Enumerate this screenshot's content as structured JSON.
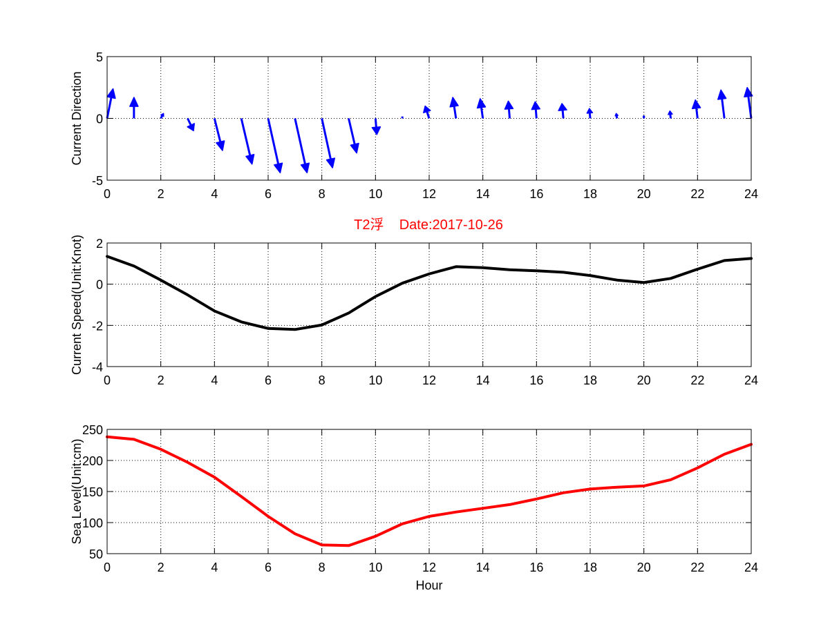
{
  "figure": {
    "title": "T2浮    Date:2017-10-26",
    "title_color": "#ff0000",
    "background": "#ffffff"
  },
  "chart_data": [
    {
      "type": "quiver",
      "ylabel": "Current Direction",
      "xlabel": "",
      "xlim": [
        0,
        24
      ],
      "ylim": [
        -5,
        5
      ],
      "xticks": [
        0,
        2,
        4,
        6,
        8,
        10,
        12,
        14,
        16,
        18,
        20,
        22,
        24
      ],
      "yticks": [
        -5,
        0,
        5
      ],
      "grid": true,
      "color": "#0000ff",
      "vectors": [
        {
          "x": 0,
          "u": 0.22,
          "v": 2.4
        },
        {
          "x": 1,
          "u": 0.0,
          "v": 1.7
        },
        {
          "x": 2,
          "u": 0.1,
          "v": 0.4
        },
        {
          "x": 3,
          "u": 0.22,
          "v": -1.0
        },
        {
          "x": 4,
          "u": 0.3,
          "v": -2.6
        },
        {
          "x": 5,
          "u": 0.4,
          "v": -3.7
        },
        {
          "x": 6,
          "u": 0.45,
          "v": -4.4
        },
        {
          "x": 7,
          "u": 0.45,
          "v": -4.4
        },
        {
          "x": 8,
          "u": 0.4,
          "v": -4.0
        },
        {
          "x": 9,
          "u": 0.3,
          "v": -2.8
        },
        {
          "x": 10,
          "u": 0.05,
          "v": -1.3
        },
        {
          "x": 11,
          "u": 0.0,
          "v": 0.08
        },
        {
          "x": 12,
          "u": -0.15,
          "v": 1.0
        },
        {
          "x": 13,
          "u": -0.12,
          "v": 1.7
        },
        {
          "x": 14,
          "u": -0.1,
          "v": 1.6
        },
        {
          "x": 15,
          "u": -0.05,
          "v": 1.4
        },
        {
          "x": 16,
          "u": -0.05,
          "v": 1.35
        },
        {
          "x": 17,
          "u": -0.05,
          "v": 1.2
        },
        {
          "x": 18,
          "u": -0.03,
          "v": 0.8
        },
        {
          "x": 19,
          "u": -0.03,
          "v": 0.4
        },
        {
          "x": 20,
          "u": 0.0,
          "v": 0.2
        },
        {
          "x": 21,
          "u": -0.03,
          "v": 0.6
        },
        {
          "x": 22,
          "u": -0.08,
          "v": 1.5
        },
        {
          "x": 23,
          "u": -0.13,
          "v": 2.3
        },
        {
          "x": 24,
          "u": -0.15,
          "v": 2.5
        }
      ]
    },
    {
      "type": "line",
      "ylabel": "Current Speed(Unit:Knot)",
      "xlabel": "",
      "xlim": [
        0,
        24
      ],
      "ylim": [
        -4,
        2
      ],
      "xticks": [
        0,
        2,
        4,
        6,
        8,
        10,
        12,
        14,
        16,
        18,
        20,
        22,
        24
      ],
      "yticks": [
        -4,
        -2,
        0,
        2
      ],
      "grid": true,
      "series": [
        {
          "color": "#000000",
          "x": [
            0,
            1,
            2,
            3,
            4,
            5,
            6,
            7,
            8,
            9,
            10,
            11,
            12,
            13,
            14,
            15,
            16,
            17,
            18,
            19,
            20,
            21,
            22,
            23,
            24
          ],
          "values": [
            1.35,
            0.88,
            0.2,
            -0.52,
            -1.3,
            -1.83,
            -2.15,
            -2.2,
            -1.98,
            -1.4,
            -0.6,
            0.05,
            0.5,
            0.85,
            0.8,
            0.7,
            0.65,
            0.58,
            0.42,
            0.2,
            0.08,
            0.28,
            0.73,
            1.15,
            1.25
          ]
        }
      ]
    },
    {
      "type": "line",
      "ylabel": "Sea Level(Unit:cm)",
      "xlabel": "Hour",
      "xlim": [
        0,
        24
      ],
      "ylim": [
        50,
        250
      ],
      "xticks": [
        0,
        2,
        4,
        6,
        8,
        10,
        12,
        14,
        16,
        18,
        20,
        22,
        24
      ],
      "yticks": [
        50,
        100,
        150,
        200,
        250
      ],
      "grid": true,
      "series": [
        {
          "color": "#ff0000",
          "x": [
            0,
            1,
            2,
            3,
            4,
            5,
            6,
            7,
            8,
            9,
            10,
            11,
            12,
            13,
            14,
            15,
            16,
            17,
            18,
            19,
            20,
            21,
            22,
            23,
            24
          ],
          "values": [
            238,
            234,
            218,
            197,
            173,
            142,
            110,
            82,
            64,
            63,
            78,
            98,
            110,
            117,
            123,
            129,
            138,
            148,
            154,
            157,
            159,
            169,
            188,
            210,
            226
          ]
        }
      ]
    }
  ]
}
